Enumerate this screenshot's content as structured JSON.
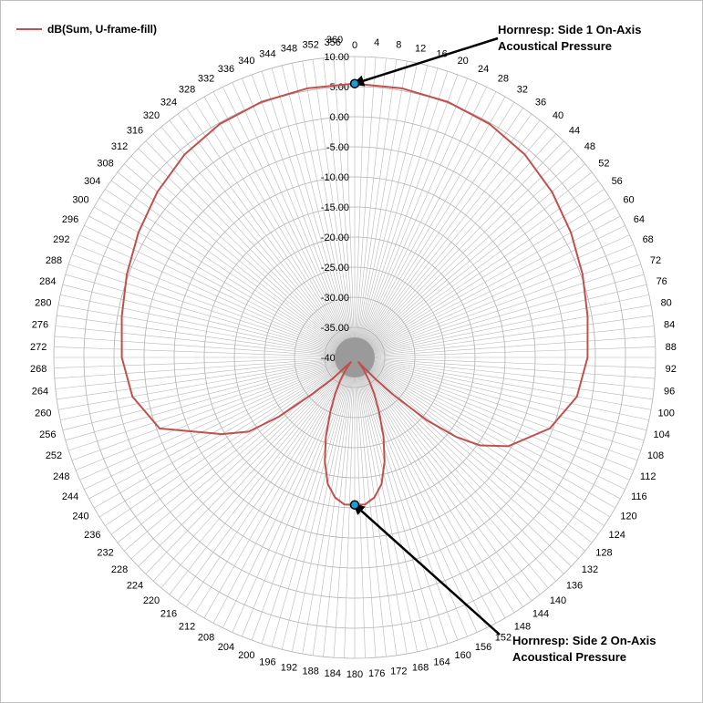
{
  "chart_data": {
    "type": "radar",
    "title": "",
    "legend": {
      "position": "top-left"
    },
    "series": [
      {
        "name": "dB(Sum, U-frame-fill)",
        "color": "#c0504d",
        "angles": [
          0,
          10,
          20,
          30,
          40,
          50,
          60,
          70,
          80,
          90,
          100,
          110,
          120,
          125,
          128,
          131,
          134,
          136,
          138,
          140,
          144,
          148,
          152,
          156,
          160,
          164,
          168,
          172,
          176,
          180,
          184,
          188,
          192,
          196,
          200,
          204,
          208,
          212,
          216,
          220,
          224,
          226,
          229,
          232,
          235,
          240,
          250,
          260,
          270,
          280,
          290,
          300,
          310,
          320,
          330,
          340,
          350,
          360
        ],
        "values": [
          5.5,
          5.4,
          5.2,
          4.8,
          4.0,
          2.8,
          1.5,
          0.3,
          -0.7,
          -1.3,
          -2.5,
          -5.5,
          -10.5,
          -14.5,
          -18.5,
          -24.0,
          -31.0,
          -35.0,
          -38.0,
          -39.0,
          -37.5,
          -35.5,
          -33.0,
          -30.0,
          -26.0,
          -22.0,
          -18.5,
          -16.5,
          -15.5,
          -15.5,
          -15.5,
          -16.5,
          -18.5,
          -22.0,
          -26.0,
          -30.0,
          -33.0,
          -35.5,
          -37.5,
          -39.0,
          -38.0,
          -35.0,
          -31.0,
          -24.0,
          -18.5,
          -14.5,
          -5.5,
          -2.5,
          -1.3,
          -0.7,
          0.3,
          1.5,
          2.8,
          4.0,
          4.8,
          5.2,
          5.4,
          5.5
        ]
      }
    ],
    "axis": {
      "angle_ticks": [
        0,
        4,
        8,
        12,
        16,
        20,
        24,
        28,
        32,
        36,
        40,
        44,
        48,
        52,
        56,
        60,
        64,
        68,
        72,
        76,
        80,
        84,
        88,
        92,
        96,
        100,
        104,
        108,
        112,
        116,
        120,
        124,
        128,
        132,
        136,
        140,
        144,
        148,
        152,
        156,
        160,
        164,
        168,
        172,
        176,
        180,
        184,
        188,
        192,
        196,
        200,
        204,
        208,
        212,
        216,
        220,
        224,
        228,
        232,
        236,
        240,
        244,
        248,
        252,
        256,
        260,
        264,
        268,
        272,
        276,
        280,
        284,
        288,
        292,
        296,
        300,
        304,
        308,
        312,
        316,
        320,
        324,
        328,
        332,
        336,
        340,
        344,
        348,
        352,
        356,
        360
      ],
      "angle_labels": [
        "0",
        "4",
        "8",
        "12",
        "16",
        "20",
        "24",
        "28",
        "32",
        "36",
        "40",
        "44",
        "48",
        "52",
        "56",
        "60",
        "64",
        "68",
        "72",
        "76",
        "80",
        "84",
        "88",
        "92",
        "96",
        "100",
        "104",
        "108",
        "112",
        "116",
        "120",
        "124",
        "128",
        "132",
        "136",
        "140",
        "144",
        "148",
        "152",
        "156",
        "160",
        "164",
        "168",
        "172",
        "176",
        "180",
        "184",
        "188",
        "192",
        "196",
        "200",
        "204",
        "208",
        "212",
        "216",
        "220",
        "224",
        "228",
        "232",
        "236",
        "240",
        "244",
        "248",
        "252",
        "256",
        "260",
        "264",
        "268",
        "272",
        "276",
        "280",
        "284",
        "288",
        "292",
        "296",
        "300",
        "304",
        "308",
        "312",
        "316",
        "320",
        "324",
        "328",
        "332",
        "336",
        "340",
        "344",
        "348",
        "352",
        "356",
        "360"
      ],
      "radial_ticks": [
        -40,
        -35,
        -30,
        -25,
        -20,
        -15,
        -10,
        -5,
        0,
        5,
        10
      ],
      "radial_labels": [
        "-40.00",
        "-35.00",
        "-30.00",
        "-25.00",
        "-20.00",
        "-15.00",
        "-10.00",
        "-5.00",
        "0.00",
        "5.00",
        "10.00"
      ],
      "rlim": [
        -40,
        10
      ]
    },
    "annotations": [
      {
        "name": "side1",
        "angle": 0,
        "value": 5.5,
        "lines": [
          "Hornresp: Side 1 On-Axis",
          "Acoustical Pressure"
        ],
        "marker_color": "#1f9bd7"
      },
      {
        "name": "side2",
        "angle": 180,
        "value": -15.5,
        "lines": [
          "Hornresp: Side 2 On-Axis",
          "Acoustical Pressure"
        ],
        "marker_color": "#1f9bd7"
      }
    ]
  }
}
